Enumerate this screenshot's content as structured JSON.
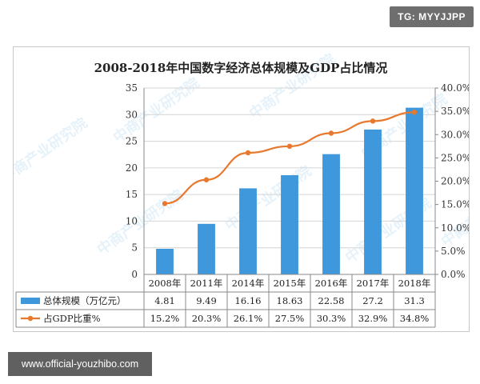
{
  "badge": {
    "text": "TG: MYYJJPP"
  },
  "footer": {
    "site_url": "www.official-youzhibo.com"
  },
  "watermark": {
    "text": "中商产业研究院"
  },
  "colors": {
    "bar": "#3f97dc",
    "line": "#e8782c",
    "grid": "#d4d4d4",
    "axis": "#888888"
  },
  "chart_data": {
    "type": "bar",
    "title": "2008-2018年中国数字经济总体规模及GDP占比情况",
    "categories": [
      "2008年",
      "2011年",
      "2014年",
      "2015年",
      "2016年",
      "2017年",
      "2018年"
    ],
    "ylim": [
      0,
      35
    ],
    "y_ticks": [
      "0",
      "5",
      "10",
      "15",
      "20",
      "25",
      "30",
      "35"
    ],
    "y2lim": [
      0,
      40
    ],
    "y2_ticks": [
      "0.0%",
      "5.0%",
      "10.0%",
      "15.0%",
      "20.0%",
      "25.0%",
      "30.0%",
      "35.0%",
      "40.0%"
    ],
    "grid": true,
    "legend": "table-bottom",
    "series": [
      {
        "name": "总体规模（万亿元）",
        "type": "bar",
        "axis": "left",
        "values": [
          4.81,
          9.49,
          16.16,
          18.63,
          22.58,
          27.2,
          31.3
        ],
        "labels": [
          "4.81",
          "9.49",
          "16.16",
          "18.63",
          "22.58",
          "27.2",
          "31.3"
        ]
      },
      {
        "name": "占GDP比重%",
        "type": "line",
        "axis": "right",
        "values": [
          15.2,
          20.3,
          26.1,
          27.5,
          30.3,
          32.9,
          34.8
        ],
        "labels": [
          "15.2%",
          "20.3%",
          "26.1%",
          "27.5%",
          "30.3%",
          "32.9%",
          "34.8%"
        ]
      }
    ]
  }
}
